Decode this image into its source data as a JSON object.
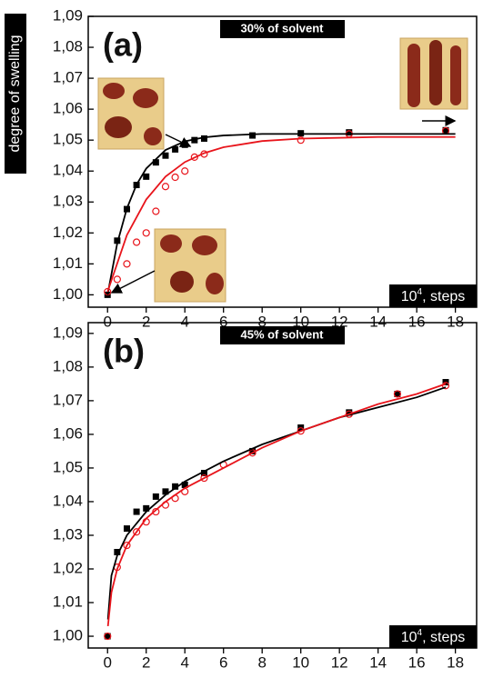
{
  "chart_data": [
    {
      "type": "scatter",
      "panel_label": "(a)",
      "annotation": "30% of solvent",
      "ylabel": "degree of swelling",
      "xlabel": {
        "base": "10",
        "exponent": "4",
        "text": ", steps"
      },
      "xlim": [
        -1,
        19.1
      ],
      "ylim": [
        0.996,
        1.09
      ],
      "xticks": [
        0,
        2,
        4,
        6,
        8,
        10,
        12,
        14,
        16,
        18
      ],
      "yticks": [
        {
          "value": 1.0,
          "label": "1,00"
        },
        {
          "value": 1.01,
          "label": "1,01"
        },
        {
          "value": 1.02,
          "label": "1,02"
        },
        {
          "value": 1.03,
          "label": "1,03"
        },
        {
          "value": 1.04,
          "label": "1,04"
        },
        {
          "value": 1.05,
          "label": "1,05"
        },
        {
          "value": 1.06,
          "label": "1,06"
        },
        {
          "value": 1.07,
          "label": "1,07"
        },
        {
          "value": 1.08,
          "label": "1,08"
        },
        {
          "value": 1.09,
          "label": "1,09"
        }
      ],
      "series": [
        {
          "marker": "square",
          "color": "#000000",
          "x": [
            0,
            0.5,
            1,
            1.5,
            2,
            2.5,
            3,
            3.5,
            4,
            4.5,
            5,
            7.5,
            10,
            12.5,
            17.5
          ],
          "values": [
            1.0,
            1.0175,
            1.0277,
            1.0355,
            1.0382,
            1.0428,
            1.045,
            1.047,
            1.0485,
            1.05,
            1.0505,
            1.0515,
            1.0522,
            1.0525,
            1.0532
          ]
        },
        {
          "marker": "circle",
          "color": "#e8141b",
          "x": [
            0,
            0.5,
            1,
            1.5,
            2,
            2.5,
            3,
            3.5,
            4,
            4.5,
            5,
            10,
            12.5,
            17.5
          ],
          "values": [
            1.001,
            1.005,
            1.01,
            1.017,
            1.02,
            1.027,
            1.035,
            1.038,
            1.04,
            1.0445,
            1.0455,
            1.05,
            1.052,
            1.053
          ]
        },
        {
          "marker": "line",
          "color": "#000000",
          "x": [
            0,
            0.5,
            1,
            1.5,
            2,
            3,
            4,
            5,
            6,
            8,
            18
          ],
          "values": [
            1.0,
            1.0166,
            1.0279,
            1.0356,
            1.0408,
            1.0468,
            1.0496,
            1.0509,
            1.0515,
            1.052,
            1.052
          ]
        },
        {
          "marker": "line",
          "color": "#e8141b",
          "x": [
            0,
            1,
            2,
            3,
            4,
            5,
            6,
            8,
            10,
            14,
            18
          ],
          "values": [
            1.001,
            1.0193,
            1.0308,
            1.0382,
            1.0429,
            1.0458,
            1.0477,
            1.0497,
            1.0505,
            1.051,
            1.051
          ]
        }
      ]
    },
    {
      "type": "scatter",
      "panel_label": "(b)",
      "annotation": "45% of solvent",
      "xlabel": {
        "base": "10",
        "exponent": "4",
        "text": ", steps"
      },
      "xlim": [
        -1,
        19.1
      ],
      "ylim": [
        0.9965,
        1.0932
      ],
      "xticks": [
        0,
        2,
        4,
        6,
        8,
        10,
        12,
        14,
        16,
        18
      ],
      "yticks": [
        {
          "value": 1.0,
          "label": "1,00"
        },
        {
          "value": 1.01,
          "label": "1,01"
        },
        {
          "value": 1.02,
          "label": "1,02"
        },
        {
          "value": 1.03,
          "label": "1,03"
        },
        {
          "value": 1.04,
          "label": "1,04"
        },
        {
          "value": 1.05,
          "label": "1,05"
        },
        {
          "value": 1.06,
          "label": "1,06"
        },
        {
          "value": 1.07,
          "label": "1,07"
        },
        {
          "value": 1.08,
          "label": "1,08"
        },
        {
          "value": 1.09,
          "label": "1,09"
        }
      ],
      "series": [
        {
          "marker": "square",
          "color": "#000000",
          "x": [
            0,
            0.5,
            1,
            1.5,
            2,
            2.5,
            3,
            3.5,
            4,
            5,
            7.5,
            10,
            12.5,
            15,
            17.5
          ],
          "values": [
            1.0,
            1.025,
            1.032,
            1.037,
            1.038,
            1.0415,
            1.043,
            1.0445,
            1.045,
            1.0485,
            1.055,
            1.062,
            1.0665,
            1.072,
            1.0755
          ]
        },
        {
          "marker": "circle",
          "color": "#e8141b",
          "x": [
            0,
            0.5,
            1,
            1.5,
            2,
            2.5,
            3,
            3.5,
            4,
            5,
            6,
            7.5,
            10,
            12.5,
            15,
            17.5
          ],
          "values": [
            1.0,
            1.0205,
            1.027,
            1.031,
            1.034,
            1.037,
            1.039,
            1.041,
            1.043,
            1.047,
            1.051,
            1.0545,
            1.061,
            1.066,
            1.072,
            1.0745
          ]
        },
        {
          "marker": "line",
          "color": "#000000",
          "x": [
            0.02,
            0.2,
            0.5,
            1,
            2,
            3,
            4,
            6,
            8,
            10,
            12,
            14,
            16,
            17.5
          ],
          "values": [
            1.005,
            1.018,
            1.024,
            1.03,
            1.037,
            1.042,
            1.046,
            1.052,
            1.057,
            1.061,
            1.065,
            1.068,
            1.071,
            1.074
          ]
        },
        {
          "marker": "line",
          "color": "#e8141b",
          "x": [
            0.02,
            0.2,
            0.5,
            1,
            2,
            3,
            4,
            6,
            8,
            10,
            12,
            14,
            16,
            17.5
          ],
          "values": [
            1.003,
            1.013,
            1.02,
            1.027,
            1.035,
            1.04,
            1.044,
            1.05,
            1.056,
            1.061,
            1.065,
            1.069,
            1.072,
            1.075
          ]
        }
      ]
    }
  ]
}
